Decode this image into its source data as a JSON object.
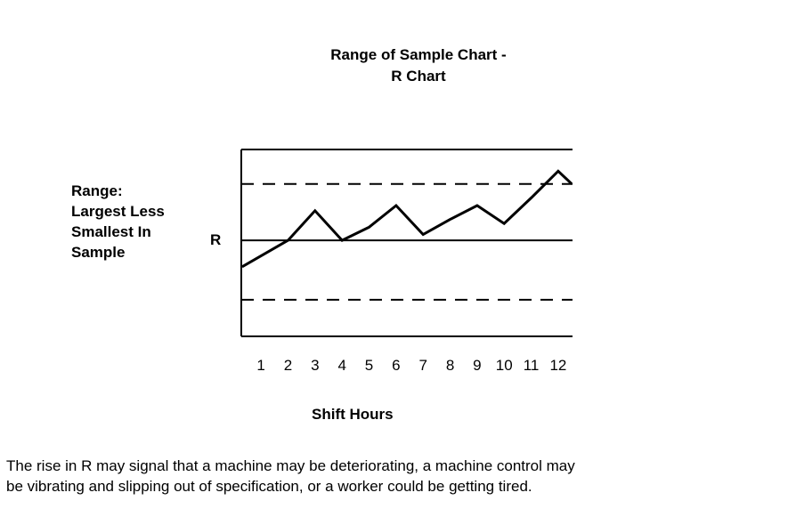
{
  "chart_data": {
    "type": "line",
    "title": "Range of Sample Chart -",
    "subtitle": "R Chart",
    "ylabel_lines": [
      "Range:",
      "Largest Less",
      "Smallest In",
      "Sample"
    ],
    "center_line_label": "R",
    "xlabel": "Shift Hours",
    "categories": [
      "1",
      "2",
      "3",
      "4",
      "5",
      "6",
      "7",
      "8",
      "9",
      "10",
      "11",
      "12"
    ],
    "x": [
      0.3,
      2,
      3,
      4,
      5,
      6,
      7,
      8,
      9,
      10,
      11,
      12,
      12.5
    ],
    "y": [
      -0.72,
      0,
      0.81,
      0,
      0.36,
      0.95,
      0.16,
      0.57,
      0.95,
      0.46,
      1.16,
      1.89,
      1.54
    ],
    "center_line": 0,
    "upper_control_limit": 1.54,
    "lower_control_limit": -1.62,
    "xlim": [
      0.27,
      12.53
    ],
    "ylim": [
      -2.62,
      2.48
    ],
    "grid": false
  },
  "caption": {
    "line1": "The rise in R may signal that a machine may be deteriorating, a machine control may",
    "line2": "be vibrating and slipping out of specification, or a worker could be getting tired."
  }
}
